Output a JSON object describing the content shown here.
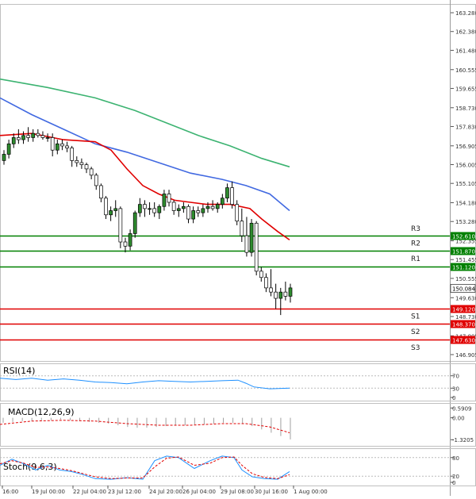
{
  "chart_data": [
    {
      "type": "line",
      "title": "",
      "y_ticks": [
        "163.280",
        "162.380",
        "161.480",
        "160.555",
        "159.655",
        "158.730",
        "157.830",
        "156.905",
        "156.005",
        "155.105",
        "154.180",
        "153.280",
        "152.355",
        "151.455",
        "150.555",
        "149.630",
        "148.730",
        "147.805",
        "146.905"
      ],
      "y_tick_values": [
        163.28,
        162.38,
        161.48,
        160.555,
        159.655,
        158.73,
        157.83,
        156.905,
        156.005,
        155.105,
        154.18,
        153.28,
        152.355,
        151.455,
        150.555,
        149.63,
        148.73,
        147.805,
        146.905
      ],
      "ylim": [
        146.6,
        163.7
      ],
      "x_ticks": [
        "16:00",
        "19 Jul 00:00",
        "22 Jul 04:00",
        "23 Jul 12:00",
        "24 Jul 20:00",
        "26 Jul 04:00",
        "29 Jul 08:00",
        "30 Jul 16:00",
        "1 Aug 00:00"
      ],
      "x_tick_positions": [
        3,
        40,
        92,
        136,
        188,
        230,
        278,
        321,
        370
      ],
      "current_price": {
        "label": "150.084",
        "value": 150.084
      },
      "levels": [
        {
          "name": "R3",
          "price_label": "152.610",
          "value": 152.61,
          "color": "#008000"
        },
        {
          "name": "R2",
          "price_label": "151.870",
          "value": 151.87,
          "color": "#008000"
        },
        {
          "name": "R1",
          "price_label": "151.120",
          "value": 151.12,
          "color": "#008000"
        },
        {
          "name": "S1",
          "price_label": "149.120",
          "value": 149.12,
          "color": "#e00000"
        },
        {
          "name": "S2",
          "price_label": "148.370",
          "value": 148.37,
          "color": "#e00000"
        },
        {
          "name": "S3",
          "price_label": "147.630",
          "value": 147.63,
          "color": "#e00000"
        }
      ],
      "level_label_order": [
        "R3",
        "R2",
        "R1",
        "S1",
        "S2",
        "S3"
      ],
      "candles": [
        {
          "o": 156.2,
          "h": 156.7,
          "l": 156.0,
          "c": 156.5
        },
        {
          "o": 156.5,
          "h": 157.2,
          "l": 156.3,
          "c": 157.0
        },
        {
          "o": 157.0,
          "h": 157.5,
          "l": 156.8,
          "c": 157.3
        },
        {
          "o": 157.3,
          "h": 157.7,
          "l": 157.0,
          "c": 157.2
        },
        {
          "o": 157.2,
          "h": 157.6,
          "l": 157.0,
          "c": 157.4
        },
        {
          "o": 157.4,
          "h": 157.8,
          "l": 157.1,
          "c": 157.3
        },
        {
          "o": 157.3,
          "h": 157.7,
          "l": 157.1,
          "c": 157.5
        },
        {
          "o": 157.5,
          "h": 157.7,
          "l": 157.3,
          "c": 157.4
        },
        {
          "o": 157.4,
          "h": 157.6,
          "l": 157.2,
          "c": 157.3
        },
        {
          "o": 157.3,
          "h": 157.5,
          "l": 157.1,
          "c": 157.3
        },
        {
          "o": 157.3,
          "h": 157.5,
          "l": 156.4,
          "c": 156.7
        },
        {
          "o": 156.7,
          "h": 157.2,
          "l": 156.5,
          "c": 157.0
        },
        {
          "o": 157.0,
          "h": 157.2,
          "l": 156.7,
          "c": 156.9
        },
        {
          "o": 156.9,
          "h": 157.1,
          "l": 156.6,
          "c": 156.8
        },
        {
          "o": 156.8,
          "h": 156.9,
          "l": 155.9,
          "c": 156.2
        },
        {
          "o": 156.2,
          "h": 156.4,
          "l": 155.9,
          "c": 156.1
        },
        {
          "o": 156.1,
          "h": 156.3,
          "l": 155.8,
          "c": 156.0
        },
        {
          "o": 156.0,
          "h": 156.1,
          "l": 155.6,
          "c": 155.8
        },
        {
          "o": 155.8,
          "h": 155.9,
          "l": 155.3,
          "c": 155.5
        },
        {
          "o": 155.5,
          "h": 155.6,
          "l": 154.8,
          "c": 155.0
        },
        {
          "o": 155.0,
          "h": 155.1,
          "l": 154.2,
          "c": 154.4
        },
        {
          "o": 154.4,
          "h": 154.5,
          "l": 153.4,
          "c": 153.6
        },
        {
          "o": 153.6,
          "h": 154.0,
          "l": 153.3,
          "c": 153.8
        },
        {
          "o": 153.8,
          "h": 154.3,
          "l": 153.5,
          "c": 153.9
        },
        {
          "o": 153.9,
          "h": 154.0,
          "l": 152.0,
          "c": 152.3
        },
        {
          "o": 152.3,
          "h": 152.5,
          "l": 151.8,
          "c": 152.1
        },
        {
          "o": 152.1,
          "h": 152.9,
          "l": 151.9,
          "c": 152.7
        },
        {
          "o": 152.7,
          "h": 153.8,
          "l": 152.5,
          "c": 153.7
        },
        {
          "o": 153.7,
          "h": 154.4,
          "l": 153.5,
          "c": 154.1
        },
        {
          "o": 154.1,
          "h": 154.3,
          "l": 153.5,
          "c": 153.9
        },
        {
          "o": 153.9,
          "h": 154.2,
          "l": 153.6,
          "c": 153.9
        },
        {
          "o": 153.9,
          "h": 154.2,
          "l": 153.5,
          "c": 153.7
        },
        {
          "o": 153.7,
          "h": 154.1,
          "l": 153.4,
          "c": 154.0
        },
        {
          "o": 154.0,
          "h": 154.8,
          "l": 153.8,
          "c": 154.6
        },
        {
          "o": 154.6,
          "h": 154.8,
          "l": 154.0,
          "c": 154.2
        },
        {
          "o": 154.2,
          "h": 154.3,
          "l": 153.6,
          "c": 153.8
        },
        {
          "o": 153.8,
          "h": 154.1,
          "l": 153.5,
          "c": 153.9
        },
        {
          "o": 153.9,
          "h": 154.2,
          "l": 153.7,
          "c": 154.0
        },
        {
          "o": 154.0,
          "h": 154.1,
          "l": 153.2,
          "c": 153.4
        },
        {
          "o": 153.4,
          "h": 154.0,
          "l": 153.2,
          "c": 153.8
        },
        {
          "o": 153.8,
          "h": 154.0,
          "l": 153.5,
          "c": 153.7
        },
        {
          "o": 153.7,
          "h": 154.1,
          "l": 153.5,
          "c": 153.9
        },
        {
          "o": 153.9,
          "h": 154.2,
          "l": 153.7,
          "c": 154.0
        },
        {
          "o": 154.0,
          "h": 154.3,
          "l": 153.8,
          "c": 153.9
        },
        {
          "o": 153.9,
          "h": 154.2,
          "l": 153.7,
          "c": 154.1
        },
        {
          "o": 154.1,
          "h": 154.6,
          "l": 153.9,
          "c": 154.4
        },
        {
          "o": 154.4,
          "h": 155.1,
          "l": 154.2,
          "c": 154.9
        },
        {
          "o": 154.9,
          "h": 155.2,
          "l": 153.9,
          "c": 154.1
        },
        {
          "o": 154.1,
          "h": 154.3,
          "l": 153.1,
          "c": 153.3
        },
        {
          "o": 153.3,
          "h": 153.9,
          "l": 152.3,
          "c": 152.6
        },
        {
          "o": 152.6,
          "h": 153.5,
          "l": 151.6,
          "c": 151.8
        },
        {
          "o": 151.8,
          "h": 153.4,
          "l": 151.6,
          "c": 153.2
        },
        {
          "o": 153.2,
          "h": 153.3,
          "l": 150.7,
          "c": 150.9
        },
        {
          "o": 150.9,
          "h": 151.1,
          "l": 150.4,
          "c": 150.6
        },
        {
          "o": 150.6,
          "h": 150.8,
          "l": 149.9,
          "c": 150.1
        },
        {
          "o": 150.1,
          "h": 151.0,
          "l": 149.7,
          "c": 149.9
        },
        {
          "o": 149.9,
          "h": 150.3,
          "l": 149.1,
          "c": 149.6
        },
        {
          "o": 149.6,
          "h": 150.1,
          "l": 148.8,
          "c": 149.9
        },
        {
          "o": 149.9,
          "h": 150.4,
          "l": 149.5,
          "c": 149.7
        },
        {
          "o": 149.7,
          "h": 150.3,
          "l": 149.4,
          "c": 150.1
        }
      ],
      "ma_slow": {
        "color": "#3cb371",
        "points": [
          [
            0,
            160.1
          ],
          [
            60,
            159.7
          ],
          [
            120,
            159.2
          ],
          [
            170,
            158.6
          ],
          [
            210,
            158.0
          ],
          [
            250,
            157.4
          ],
          [
            290,
            156.9
          ],
          [
            330,
            156.3
          ],
          [
            365,
            155.9
          ]
        ]
      },
      "ma_mid": {
        "color": "#4169e1",
        "points": [
          [
            0,
            159.2
          ],
          [
            40,
            158.4
          ],
          [
            80,
            157.7
          ],
          [
            120,
            157.0
          ],
          [
            160,
            156.6
          ],
          [
            200,
            156.1
          ],
          [
            240,
            155.6
          ],
          [
            280,
            155.3
          ],
          [
            310,
            155.0
          ],
          [
            340,
            154.6
          ],
          [
            365,
            153.8
          ]
        ]
      },
      "ma_fast": {
        "color": "#e00000",
        "points": [
          [
            0,
            157.4
          ],
          [
            40,
            157.5
          ],
          [
            80,
            157.2
          ],
          [
            120,
            157.1
          ],
          [
            140,
            156.7
          ],
          [
            160,
            155.8
          ],
          [
            180,
            155.0
          ],
          [
            200,
            154.6
          ],
          [
            220,
            154.3
          ],
          [
            240,
            154.2
          ],
          [
            260,
            154.1
          ],
          [
            290,
            154.1
          ],
          [
            315,
            153.9
          ],
          [
            330,
            153.4
          ],
          [
            350,
            152.8
          ],
          [
            365,
            152.4
          ]
        ]
      }
    },
    {
      "type": "line",
      "title": "RSI(14)",
      "y_ticks": [
        "70",
        "30",
        "0"
      ],
      "ylim": [
        0,
        100
      ],
      "color": "#1e90ff",
      "points": [
        [
          0,
          62
        ],
        [
          20,
          58
        ],
        [
          40,
          62
        ],
        [
          60,
          56
        ],
        [
          80,
          60
        ],
        [
          100,
          56
        ],
        [
          120,
          50
        ],
        [
          140,
          48
        ],
        [
          160,
          44
        ],
        [
          180,
          50
        ],
        [
          200,
          54
        ],
        [
          220,
          52
        ],
        [
          240,
          50
        ],
        [
          260,
          52
        ],
        [
          280,
          54
        ],
        [
          300,
          56
        ],
        [
          310,
          46
        ],
        [
          320,
          34
        ],
        [
          340,
          28
        ],
        [
          365,
          30
        ]
      ]
    },
    {
      "type": "bar",
      "title": "MACD(12,26,9)",
      "y_ticks": [
        "0.5909",
        "0.00",
        "-1.3205"
      ],
      "ylim": [
        -1.5,
        0.7
      ],
      "signal_color": "#e00000",
      "signal": [
        [
          0,
          -0.4
        ],
        [
          40,
          -0.2
        ],
        [
          80,
          -0.15
        ],
        [
          120,
          -0.2
        ],
        [
          160,
          -0.35
        ],
        [
          200,
          -0.45
        ],
        [
          240,
          -0.45
        ],
        [
          280,
          -0.35
        ],
        [
          310,
          -0.35
        ],
        [
          340,
          -0.55
        ],
        [
          365,
          -0.9
        ]
      ],
      "bars": [
        -0.3,
        -0.25,
        -0.2,
        -0.2,
        -0.15,
        -0.15,
        -0.1,
        -0.15,
        -0.2,
        -0.25,
        -0.3,
        -0.35,
        -0.45,
        -0.55,
        -0.6,
        -0.6,
        -0.55,
        -0.5,
        -0.45,
        -0.45,
        -0.4,
        -0.4,
        -0.35,
        -0.3,
        -0.3,
        -0.35,
        -0.5,
        -0.7,
        -0.9,
        -1.1,
        -1.3
      ]
    },
    {
      "type": "line",
      "title": "Stoch(9,6,3)",
      "y_ticks": [
        "80",
        "20",
        "0"
      ],
      "ylim": [
        0,
        100
      ],
      "main_color": "#1e90ff",
      "signal_color": "#e00000",
      "main": [
        [
          0,
          55
        ],
        [
          15,
          75
        ],
        [
          30,
          60
        ],
        [
          45,
          40
        ],
        [
          60,
          55
        ],
        [
          75,
          40
        ],
        [
          90,
          35
        ],
        [
          105,
          25
        ],
        [
          120,
          12
        ],
        [
          140,
          10
        ],
        [
          160,
          15
        ],
        [
          180,
          10
        ],
        [
          195,
          70
        ],
        [
          210,
          85
        ],
        [
          225,
          80
        ],
        [
          245,
          45
        ],
        [
          265,
          70
        ],
        [
          280,
          85
        ],
        [
          295,
          80
        ],
        [
          305,
          40
        ],
        [
          318,
          18
        ],
        [
          333,
          12
        ],
        [
          350,
          10
        ],
        [
          365,
          35
        ]
      ],
      "signal": [
        [
          0,
          60
        ],
        [
          15,
          70
        ],
        [
          30,
          62
        ],
        [
          45,
          48
        ],
        [
          60,
          50
        ],
        [
          75,
          45
        ],
        [
          90,
          38
        ],
        [
          105,
          28
        ],
        [
          120,
          18
        ],
        [
          140,
          12
        ],
        [
          160,
          14
        ],
        [
          180,
          14
        ],
        [
          195,
          50
        ],
        [
          210,
          78
        ],
        [
          225,
          82
        ],
        [
          245,
          55
        ],
        [
          265,
          62
        ],
        [
          280,
          80
        ],
        [
          295,
          82
        ],
        [
          305,
          55
        ],
        [
          318,
          28
        ],
        [
          333,
          16
        ],
        [
          350,
          12
        ],
        [
          365,
          25
        ]
      ]
    }
  ]
}
